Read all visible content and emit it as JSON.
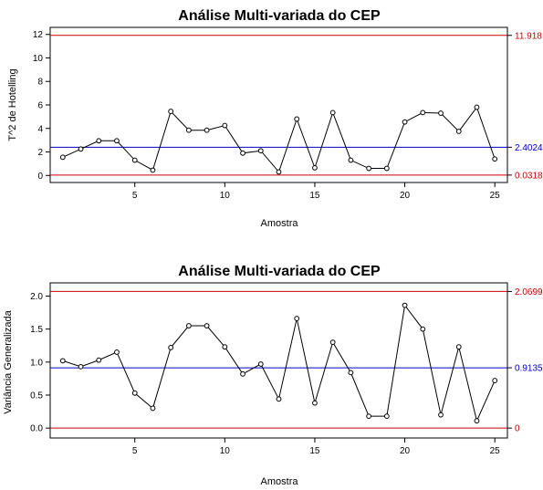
{
  "chart_data": [
    {
      "type": "line",
      "title": "Análise Multi-variada do CEP",
      "xlabel": "Amostra",
      "ylabel": "T^2 de Hotelling",
      "xlim": [
        0.3,
        25.7
      ],
      "ylim": [
        -0.6,
        12.6
      ],
      "xticks": [
        5,
        10,
        15,
        20,
        25
      ],
      "yticks": [
        0,
        2,
        4,
        6,
        8,
        10,
        12
      ],
      "x": [
        1,
        2,
        3,
        4,
        5,
        6,
        7,
        8,
        9,
        10,
        11,
        12,
        13,
        14,
        15,
        16,
        17,
        18,
        19,
        20,
        21,
        22,
        23,
        24,
        25
      ],
      "series": [
        {
          "values": [
            1.55,
            2.25,
            2.95,
            2.95,
            1.3,
            0.45,
            5.45,
            3.85,
            3.85,
            4.25,
            1.9,
            2.1,
            0.3,
            4.8,
            0.65,
            5.35,
            1.3,
            0.6,
            0.6,
            4.55,
            5.35,
            5.3,
            3.75,
            5.8,
            1.4
          ]
        }
      ],
      "limits": [
        {
          "value": 11.918,
          "label": "11.918",
          "color": "#cc0000"
        },
        {
          "value": 2.4024,
          "label": "2.4024",
          "color": "#0000cc"
        },
        {
          "value": 0.0318,
          "label": "0.0318",
          "color": "#cc0000"
        }
      ],
      "grid": false,
      "line_color": "#000000",
      "marker": "open-circle"
    },
    {
      "type": "line",
      "title": "Análise Multi-variada do CEP",
      "xlabel": "Amostra",
      "ylabel": "Variância Generalizada",
      "xlim": [
        0.3,
        25.7
      ],
      "ylim": [
        -0.15,
        2.2
      ],
      "xticks": [
        5,
        10,
        15,
        20,
        25
      ],
      "yticks": [
        0.0,
        0.5,
        1.0,
        1.5,
        2.0
      ],
      "ytick_labels": [
        "0.0",
        "0.5",
        "1.0",
        "1.5",
        "2.0"
      ],
      "x": [
        1,
        2,
        3,
        4,
        5,
        6,
        7,
        8,
        9,
        10,
        11,
        12,
        13,
        14,
        15,
        16,
        17,
        18,
        19,
        20,
        21,
        22,
        23,
        24,
        25
      ],
      "series": [
        {
          "values": [
            1.02,
            0.93,
            1.03,
            1.15,
            0.53,
            0.3,
            1.22,
            1.55,
            1.55,
            1.23,
            0.82,
            0.97,
            0.44,
            1.66,
            0.38,
            1.3,
            0.84,
            0.18,
            0.18,
            1.86,
            1.5,
            0.2,
            1.23,
            0.11,
            0.72
          ]
        }
      ],
      "limits": [
        {
          "value": 2.0699,
          "label": "2.0699",
          "color": "#cc0000"
        },
        {
          "value": 0.9135,
          "label": "0.9135",
          "color": "#0000cc"
        },
        {
          "value": 0.0,
          "label": "0",
          "color": "#cc0000"
        }
      ],
      "grid": false,
      "line_color": "#000000",
      "marker": "open-circle"
    }
  ]
}
